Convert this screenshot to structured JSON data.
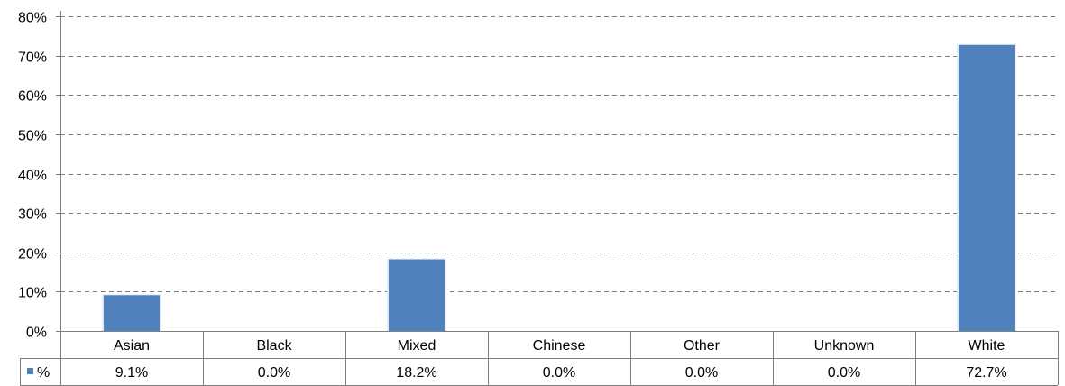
{
  "chart_data": {
    "type": "bar",
    "categories": [
      "Asian",
      "Black",
      "Mixed",
      "Chinese",
      "Other",
      "Unknown",
      "White"
    ],
    "series": [
      {
        "name": "%",
        "values": [
          9.1,
          0.0,
          18.2,
          0.0,
          0.0,
          0.0,
          72.7
        ],
        "value_labels": [
          "9.1%",
          "0.0%",
          "18.2%",
          "0.0%",
          "0.0%",
          "0.0%",
          "72.7%"
        ]
      }
    ],
    "ylim": [
      0,
      80
    ],
    "yticks": [
      0,
      10,
      20,
      30,
      40,
      50,
      60,
      70,
      80
    ],
    "ytick_labels": [
      "0%",
      "10%",
      "20%",
      "30%",
      "40%",
      "50%",
      "60%",
      "70%",
      "80%"
    ],
    "grid": true,
    "data_table": true,
    "bar_color": "#4f81bd",
    "grid_color": "#7f7f7f"
  }
}
